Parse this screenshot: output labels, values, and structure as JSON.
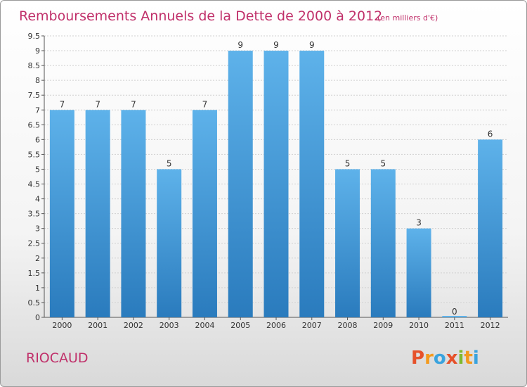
{
  "header": {
    "title": "Remboursements Annuels de la Dette de 2000 à 2012",
    "subtitle": "(en milliers d'€)"
  },
  "commune": "RIOCAUD",
  "brand": {
    "letters": [
      "P",
      "r",
      "o",
      "x",
      "i",
      "t",
      "i"
    ],
    "colors": [
      "#e6512a",
      "#f39a1d",
      "#3aa3de",
      "#e6512a",
      "#7fba2f",
      "#f39a1d",
      "#3aa3de"
    ]
  },
  "colors": {
    "bar_light": "#5eb2ea",
    "bar_dark": "#2a7bbd",
    "title": "#c0306a",
    "grid": "#d0d0d0"
  },
  "chart_data": {
    "type": "bar",
    "title": "Remboursements Annuels de la Dette de 2000 à 2012",
    "subtitle": "(en milliers d'€)",
    "categories": [
      "2000",
      "2001",
      "2002",
      "2003",
      "2004",
      "2005",
      "2006",
      "2007",
      "2008",
      "2009",
      "2010",
      "2011",
      "2012"
    ],
    "values": [
      7,
      7,
      7,
      5,
      7,
      9,
      9,
      9,
      5,
      5,
      3,
      0,
      6
    ],
    "data_labels": [
      "7",
      "7",
      "7",
      "5",
      "7",
      "9",
      "9",
      "9",
      "5",
      "5",
      "3",
      "0",
      "6"
    ],
    "y_ticks": [
      "0",
      "0.5",
      "1",
      "1.5",
      "2",
      "2.5",
      "3",
      "3.5",
      "4",
      "4.5",
      "5",
      "5.5",
      "6",
      "6.5",
      "7",
      "7.5",
      "8",
      "8.5",
      "9",
      "9.5"
    ],
    "ylim": [
      0,
      9.5
    ],
    "grid": true,
    "xlabel": "",
    "ylabel": ""
  }
}
